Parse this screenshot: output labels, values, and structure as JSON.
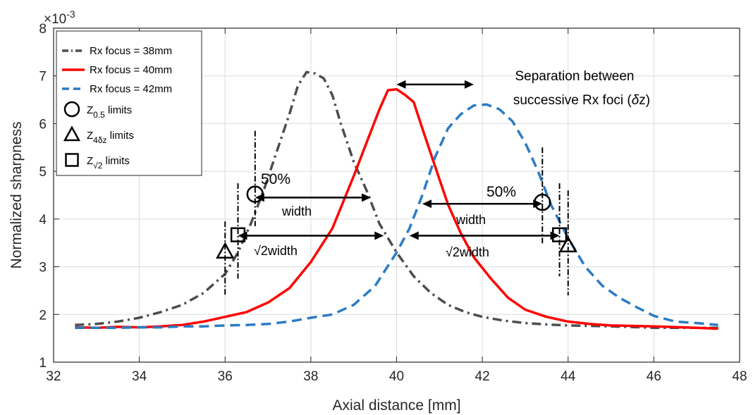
{
  "chart_data": {
    "type": "line",
    "title": "",
    "xlabel": "Axial distance [mm]",
    "ylabel": "Normalized sharpness",
    "y_exponent_label": "×10",
    "y_exponent": "-3",
    "xlim": [
      32,
      48
    ],
    "ylim": [
      1,
      8
    ],
    "xticks": [
      32,
      34,
      36,
      38,
      40,
      42,
      44,
      46,
      48
    ],
    "yticks": [
      1,
      2,
      3,
      4,
      5,
      6,
      7,
      8
    ],
    "grid": true,
    "legend_position": "top-left",
    "series": [
      {
        "name": "Rx focus = 38mm",
        "color": "#4d4d4d",
        "style": "dash-dot",
        "points": [
          [
            32.5,
            1.78
          ],
          [
            33,
            1.8
          ],
          [
            33.5,
            1.85
          ],
          [
            34,
            1.93
          ],
          [
            34.5,
            2.05
          ],
          [
            35,
            2.2
          ],
          [
            35.5,
            2.45
          ],
          [
            36,
            2.85
          ],
          [
            36.3,
            3.3
          ],
          [
            36.6,
            3.9
          ],
          [
            36.9,
            4.6
          ],
          [
            37.2,
            5.4
          ],
          [
            37.5,
            6.2
          ],
          [
            37.7,
            6.8
          ],
          [
            37.9,
            7.08
          ],
          [
            38.1,
            7.05
          ],
          [
            38.3,
            6.95
          ],
          [
            38.5,
            6.6
          ],
          [
            38.7,
            6.0
          ],
          [
            39,
            5.2
          ],
          [
            39.3,
            4.6
          ],
          [
            39.6,
            3.9
          ],
          [
            40,
            3.3
          ],
          [
            40.4,
            2.8
          ],
          [
            40.8,
            2.45
          ],
          [
            41.2,
            2.2
          ],
          [
            41.6,
            2.05
          ],
          [
            42,
            1.95
          ],
          [
            42.5,
            1.87
          ],
          [
            43,
            1.82
          ],
          [
            43.5,
            1.79
          ],
          [
            44,
            1.77
          ],
          [
            45,
            1.75
          ],
          [
            46,
            1.72
          ],
          [
            47,
            1.72
          ],
          [
            47.5,
            1.72
          ]
        ]
      },
      {
        "name": "Rx focus = 40mm",
        "color": "#ff0000",
        "style": "solid",
        "points": [
          [
            32.5,
            1.73
          ],
          [
            33,
            1.72
          ],
          [
            33.5,
            1.74
          ],
          [
            34,
            1.73
          ],
          [
            34.5,
            1.75
          ],
          [
            35,
            1.78
          ],
          [
            35.5,
            1.85
          ],
          [
            36,
            1.95
          ],
          [
            36.5,
            2.05
          ],
          [
            37,
            2.25
          ],
          [
            37.5,
            2.55
          ],
          [
            38,
            3.1
          ],
          [
            38.5,
            3.8
          ],
          [
            39,
            4.9
          ],
          [
            39.3,
            5.6
          ],
          [
            39.6,
            6.3
          ],
          [
            39.8,
            6.7
          ],
          [
            40,
            6.72
          ],
          [
            40.2,
            6.6
          ],
          [
            40.4,
            6.45
          ],
          [
            40.6,
            5.9
          ],
          [
            40.9,
            5.1
          ],
          [
            41.2,
            4.3
          ],
          [
            41.5,
            3.7
          ],
          [
            41.8,
            3.2
          ],
          [
            42.2,
            2.75
          ],
          [
            42.6,
            2.35
          ],
          [
            43,
            2.1
          ],
          [
            43.5,
            1.95
          ],
          [
            44,
            1.85
          ],
          [
            44.5,
            1.8
          ],
          [
            45,
            1.77
          ],
          [
            46,
            1.75
          ],
          [
            47,
            1.72
          ],
          [
            47.5,
            1.7
          ]
        ]
      },
      {
        "name": "Rx focus = 42mm",
        "color": "#2b7bc4",
        "style": "dashed",
        "points": [
          [
            32.5,
            1.72
          ],
          [
            33,
            1.72
          ],
          [
            33.5,
            1.72
          ],
          [
            34,
            1.73
          ],
          [
            34.5,
            1.73
          ],
          [
            35,
            1.75
          ],
          [
            35.5,
            1.75
          ],
          [
            36,
            1.77
          ],
          [
            36.5,
            1.78
          ],
          [
            37,
            1.8
          ],
          [
            37.5,
            1.85
          ],
          [
            38,
            1.93
          ],
          [
            38.5,
            2.0
          ],
          [
            39,
            2.2
          ],
          [
            39.5,
            2.6
          ],
          [
            40,
            3.3
          ],
          [
            40.3,
            3.8
          ],
          [
            40.6,
            4.5
          ],
          [
            40.9,
            5.3
          ],
          [
            41.2,
            5.9
          ],
          [
            41.5,
            6.2
          ],
          [
            41.8,
            6.38
          ],
          [
            42.1,
            6.4
          ],
          [
            42.4,
            6.3
          ],
          [
            42.7,
            6.05
          ],
          [
            43,
            5.6
          ],
          [
            43.3,
            5.0
          ],
          [
            43.6,
            4.3
          ],
          [
            44,
            3.6
          ],
          [
            44.4,
            3.0
          ],
          [
            44.8,
            2.6
          ],
          [
            45.2,
            2.35
          ],
          [
            45.6,
            2.15
          ],
          [
            46,
            1.97
          ],
          [
            46.5,
            1.85
          ],
          [
            47,
            1.82
          ],
          [
            47.5,
            1.78
          ]
        ]
      }
    ],
    "marker_legend": [
      {
        "symbol": "circle",
        "label": "Z",
        "subscript": "0.5",
        "suffix": " limits"
      },
      {
        "symbol": "triangle",
        "label": "Z",
        "subscript": "4δz",
        "suffix": " limits"
      },
      {
        "symbol": "square",
        "label": "Z",
        "subscript": "√2",
        "suffix": " limits"
      }
    ],
    "markers": [
      {
        "symbol": "circle",
        "x": 36.7,
        "y": 4.52
      },
      {
        "symbol": "circle",
        "x": 43.4,
        "y": 4.35
      },
      {
        "symbol": "triangle",
        "x": 36.0,
        "y": 3.32
      },
      {
        "symbol": "triangle",
        "x": 44.0,
        "y": 3.45
      },
      {
        "symbol": "square",
        "x": 36.3,
        "y": 3.67
      },
      {
        "symbol": "square",
        "x": 43.8,
        "y": 3.67
      }
    ],
    "vlines": [
      {
        "x": 36.0,
        "y1": 2.4,
        "y2": 3.95
      },
      {
        "x": 36.3,
        "y1": 2.75,
        "y2": 4.75
      },
      {
        "x": 36.7,
        "y1": 3.85,
        "y2": 5.85
      },
      {
        "x": 43.4,
        "y1": 3.45,
        "y2": 5.5
      },
      {
        "x": 43.8,
        "y1": 2.8,
        "y2": 4.75
      },
      {
        "x": 44.0,
        "y1": 2.4,
        "y2": 4.6
      }
    ],
    "arrows": [
      {
        "x1": 40.0,
        "x2": 41.8,
        "y": 6.82
      },
      {
        "x1": 36.7,
        "x2": 39.4,
        "y": 4.45
      },
      {
        "x1": 40.6,
        "x2": 43.4,
        "y": 4.32
      },
      {
        "x1": 36.3,
        "x2": 39.7,
        "y": 3.65
      },
      {
        "x1": 40.3,
        "x2": 43.8,
        "y": 3.65
      }
    ],
    "annotations": {
      "separation_line1": "Separation between",
      "separation_line2": "successive Rx foci (",
      "separation_symbol": "δ",
      "separation_tail": "z)",
      "pct_left": "50%",
      "pct_right": "50%",
      "width_left": "width",
      "width_right": "width",
      "sqrt_left": "√2width",
      "sqrt_right": "√2width"
    }
  }
}
